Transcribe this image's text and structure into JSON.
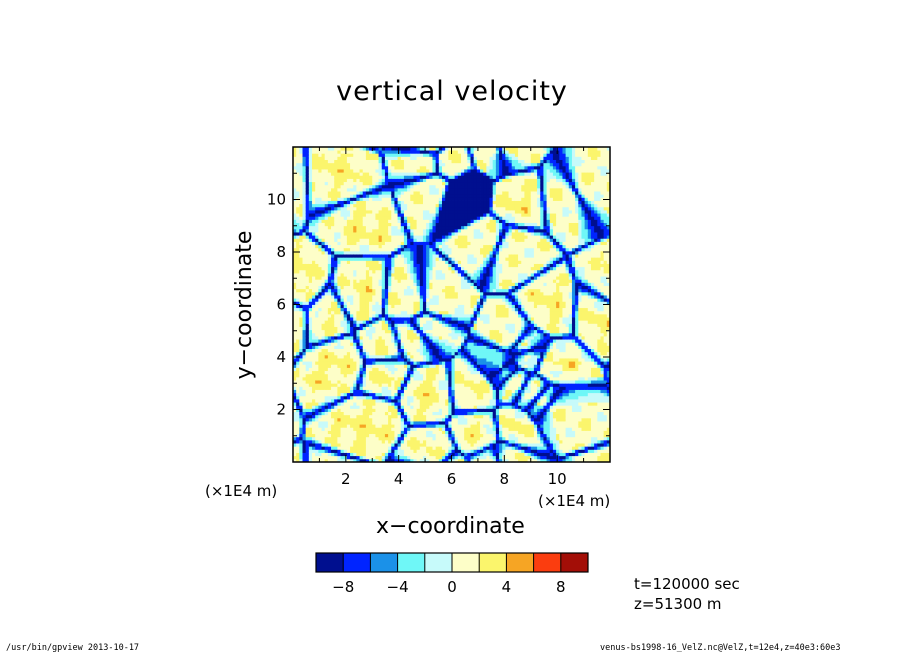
{
  "chart_data": {
    "type": "heatmap",
    "title": "vertical velocity",
    "xlabel": "x−coordinate",
    "ylabel": "y−coordinate",
    "x_unit_label": "(×1E4 m)",
    "y_unit_label": "(×1E4 m)",
    "xlim": [
      0,
      12
    ],
    "ylim": [
      0,
      12
    ],
    "x_ticks": [
      2,
      4,
      6,
      8,
      10
    ],
    "y_ticks": [
      2,
      4,
      6,
      8,
      10
    ],
    "x_tick_labels": [
      "2",
      "4",
      "6",
      "8",
      "10"
    ],
    "y_tick_labels": [
      "2",
      "4",
      "6",
      "8",
      "10"
    ],
    "colorbar": {
      "levels": [
        -10,
        -8,
        -6,
        -4,
        -2,
        0,
        2,
        4,
        6,
        8,
        10
      ],
      "colors": [
        "#000f8f",
        "#0024ff",
        "#1b91e8",
        "#6ff7f7",
        "#c7fafa",
        "#fdfec8",
        "#fbf56c",
        "#f6a524",
        "#fb3d0f",
        "#a30e07"
      ],
      "tick_values": [
        -8,
        -4,
        0,
        4,
        8
      ],
      "tick_labels": [
        "−8",
        "−4",
        "0",
        "4",
        "8"
      ]
    }
  },
  "info": {
    "time": "t=120000 sec",
    "z": "z=51300 m"
  },
  "footer": {
    "left": "/usr/bin/gpview  2013-10-17",
    "right": "venus-bs1998-16_VelZ.nc@VelZ,t=12e4,z=40e3:60e3"
  }
}
